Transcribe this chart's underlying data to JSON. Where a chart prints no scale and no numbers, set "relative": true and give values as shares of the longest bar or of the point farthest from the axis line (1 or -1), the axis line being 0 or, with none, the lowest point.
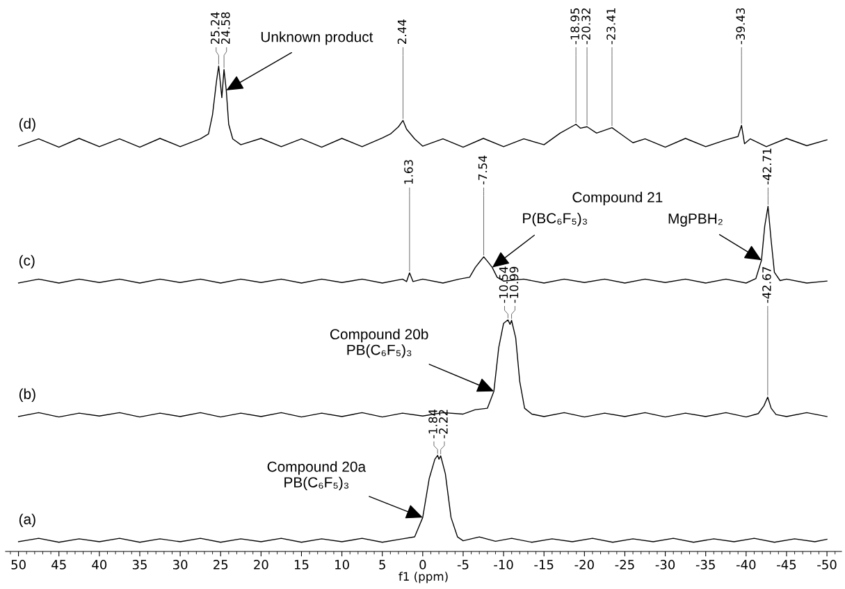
{
  "chart_data": {
    "type": "line",
    "relative": true,
    "xlabel": "f1 (ppm)",
    "xlim": [
      51.6,
      -51.8
    ],
    "xticks": [
      50,
      45,
      40,
      35,
      30,
      25,
      20,
      15,
      10,
      5,
      0,
      -5,
      -10,
      -15,
      -20,
      -25,
      -30,
      -35,
      -40,
      -45,
      -50
    ],
    "legend": false,
    "grid": false,
    "marker": "none",
    "line_style": "solid",
    "series": [
      {
        "name": "(d)",
        "color": "#000000",
        "x": [
          50,
          47.5,
          45,
          42.5,
          40,
          37.5,
          35,
          32.5,
          30,
          27.5,
          26.5,
          26,
          25.5,
          25.24,
          25,
          24.85,
          24.58,
          24.3,
          24,
          23.5,
          22.5,
          20,
          17.5,
          15,
          12.5,
          10,
          7.5,
          5,
          4,
          3,
          2.44,
          2,
          1,
          0,
          -2.5,
          -5,
          -7.5,
          -10,
          -12.5,
          -15,
          -17,
          -18.95,
          -19.5,
          -20.32,
          -21.5,
          -23.41,
          -24.5,
          -26,
          -27.5,
          -30,
          -32.5,
          -35,
          -37.5,
          -39,
          -39.43,
          -39.8,
          -40.5,
          -42.5,
          -45,
          -47.5,
          -50
        ],
        "values": [
          0.835,
          0.85,
          0.833,
          0.851,
          0.834,
          0.85,
          0.833,
          0.851,
          0.834,
          0.85,
          0.86,
          0.9,
          0.97,
          1,
          0.96,
          0.935,
          0.993,
          0.95,
          0.88,
          0.85,
          0.838,
          0.851,
          0.834,
          0.85,
          0.833,
          0.851,
          0.834,
          0.852,
          0.86,
          0.875,
          0.888,
          0.87,
          0.85,
          0.835,
          0.85,
          0.833,
          0.851,
          0.834,
          0.85,
          0.838,
          0.862,
          0.88,
          0.872,
          0.875,
          0.862,
          0.873,
          0.86,
          0.842,
          0.85,
          0.833,
          0.851,
          0.834,
          0.848,
          0.855,
          0.878,
          0.84,
          0.85,
          0.834,
          0.851,
          0.836,
          0.848
        ]
      },
      {
        "name": "(c)",
        "color": "#000000",
        "x": [
          50,
          47.5,
          45,
          42.5,
          40,
          37.5,
          35,
          32.5,
          30,
          27.5,
          25,
          22.5,
          20,
          17.5,
          15,
          12.5,
          10,
          7.5,
          5,
          2.5,
          2,
          1.63,
          1.2,
          0,
          -2.5,
          -4.5,
          -5.8,
          -6.5,
          -7.2,
          -7.54,
          -8,
          -8.6,
          -9.2,
          -10,
          -12.5,
          -15,
          -17.5,
          -20,
          -22.5,
          -25,
          -27.5,
          -30,
          -32.5,
          -35,
          -37.5,
          -40,
          -41.2,
          -41.9,
          -42.3,
          -42.71,
          -43.1,
          -43.5,
          -44.2,
          -45,
          -47.5,
          -50
        ],
        "values": [
          0.553,
          0.561,
          0.553,
          0.561,
          0.554,
          0.561,
          0.553,
          0.561,
          0.554,
          0.561,
          0.553,
          0.561,
          0.554,
          0.561,
          0.553,
          0.561,
          0.554,
          0.561,
          0.553,
          0.561,
          0.556,
          0.574,
          0.556,
          0.561,
          0.553,
          0.561,
          0.565,
          0.585,
          0.6,
          0.607,
          0.598,
          0.585,
          0.565,
          0.557,
          0.561,
          0.553,
          0.561,
          0.554,
          0.561,
          0.553,
          0.561,
          0.554,
          0.561,
          0.553,
          0.561,
          0.553,
          0.562,
          0.6,
          0.67,
          0.711,
          0.64,
          0.575,
          0.558,
          0.561,
          0.553,
          0.557
        ]
      },
      {
        "name": "(b)",
        "color": "#000000",
        "x": [
          50,
          47.5,
          45,
          42.5,
          40,
          37.5,
          35,
          32.5,
          30,
          27.5,
          25,
          22.5,
          20,
          17.5,
          15,
          12.5,
          10,
          7.5,
          5,
          2.5,
          0,
          -2.5,
          -5,
          -6.5,
          -8,
          -8.8,
          -9.4,
          -10,
          -10.54,
          -10.8,
          -10.99,
          -11.5,
          -12,
          -12.6,
          -13.5,
          -15,
          -17.5,
          -20,
          -22.5,
          -25,
          -27.5,
          -30,
          -32.5,
          -35,
          -37.5,
          -40,
          -41.5,
          -42.2,
          -42.67,
          -43.1,
          -43.7,
          -45,
          -47.5,
          -50
        ],
        "values": [
          0.278,
          0.286,
          0.277,
          0.285,
          0.279,
          0.286,
          0.277,
          0.285,
          0.278,
          0.286,
          0.277,
          0.285,
          0.278,
          0.286,
          0.277,
          0.285,
          0.278,
          0.286,
          0.277,
          0.285,
          0.279,
          0.286,
          0.283,
          0.292,
          0.295,
          0.33,
          0.42,
          0.47,
          0.477,
          0.468,
          0.476,
          0.44,
          0.35,
          0.295,
          0.283,
          0.278,
          0.286,
          0.277,
          0.285,
          0.278,
          0.286,
          0.277,
          0.285,
          0.278,
          0.286,
          0.277,
          0.284,
          0.3,
          0.318,
          0.295,
          0.282,
          0.278,
          0.286,
          0.278
        ]
      },
      {
        "name": "(a)",
        "color": "#000000",
        "x": [
          50,
          47.5,
          45,
          42.5,
          40,
          37.5,
          35,
          32.5,
          30,
          27.5,
          25,
          22.5,
          20,
          17.5,
          15,
          12.5,
          10,
          7.5,
          5,
          2.5,
          1,
          0,
          -0.8,
          -1.5,
          -1.84,
          -2.0,
          -2.22,
          -2.8,
          -3.5,
          -4.3,
          -5,
          -7,
          -9,
          -11,
          -13.5,
          -16,
          -18.5,
          -21,
          -23.5,
          -26,
          -28.5,
          -31,
          -33.5,
          -36,
          -38.5,
          -41,
          -43.5,
          -46,
          -48.5,
          -50
        ],
        "values": [
          0.02,
          0.027,
          0.019,
          0.026,
          0.02,
          0.027,
          0.019,
          0.026,
          0.02,
          0.027,
          0.019,
          0.026,
          0.02,
          0.027,
          0.019,
          0.026,
          0.02,
          0.027,
          0.019,
          0.026,
          0.03,
          0.07,
          0.15,
          0.19,
          0.198,
          0.19,
          0.197,
          0.16,
          0.07,
          0.03,
          0.022,
          0.03,
          0.021,
          0.027,
          0.019,
          0.026,
          0.02,
          0.027,
          0.019,
          0.026,
          0.02,
          0.027,
          0.019,
          0.026,
          0.02,
          0.027,
          0.019,
          0.026,
          0.02,
          0.025
        ]
      }
    ],
    "annotations": [
      {
        "text": "25.24",
        "x": 25.24,
        "y": 1
      },
      {
        "text": "24.58",
        "x": 24.58,
        "y": 0.993
      },
      {
        "text": "2.44",
        "x": 2.44,
        "y": 0.888
      },
      {
        "text": "-18.95",
        "x": -18.95,
        "y": 0.88
      },
      {
        "text": "-20.32",
        "x": -20.32,
        "y": 0.875
      },
      {
        "text": "-23.41",
        "x": -23.41,
        "y": 0.873
      },
      {
        "text": "-39.43",
        "x": -39.43,
        "y": 0.878
      },
      {
        "text": "1.63",
        "x": 1.63,
        "y": 0.574
      },
      {
        "text": "-7.54",
        "x": -7.54,
        "y": 0.607
      },
      {
        "text": "-42.71",
        "x": -42.71,
        "y": 0.711
      },
      {
        "text": "-10.54",
        "x": -10.54,
        "y": 0.477
      },
      {
        "text": "-10.99",
        "x": -10.99,
        "y": 0.476
      },
      {
        "text": "-42.67",
        "x": -42.67,
        "y": 0.318
      },
      {
        "text": "-1.84",
        "x": -1.84,
        "y": 0.198
      },
      {
        "text": "-2.22",
        "x": -2.22,
        "y": 0.197
      },
      "Compound 21",
      {
        "text": "Unknown product",
        "x": 24.3,
        "y": 0.95
      },
      {
        "text": "P(BC₆F₅)₃",
        "x": -8.6,
        "y": 0.585
      },
      {
        "text": "MgPBH₂",
        "x": -41.9,
        "y": 0.6
      },
      {
        "text": "Compound 20b\nPB(C₆F₅)₃",
        "x": -8.8,
        "y": 0.33
      },
      {
        "text": "Compound 20a\nPB(C₆F₅)₃",
        "x": 0,
        "y": 0.07
      }
    ]
  }
}
